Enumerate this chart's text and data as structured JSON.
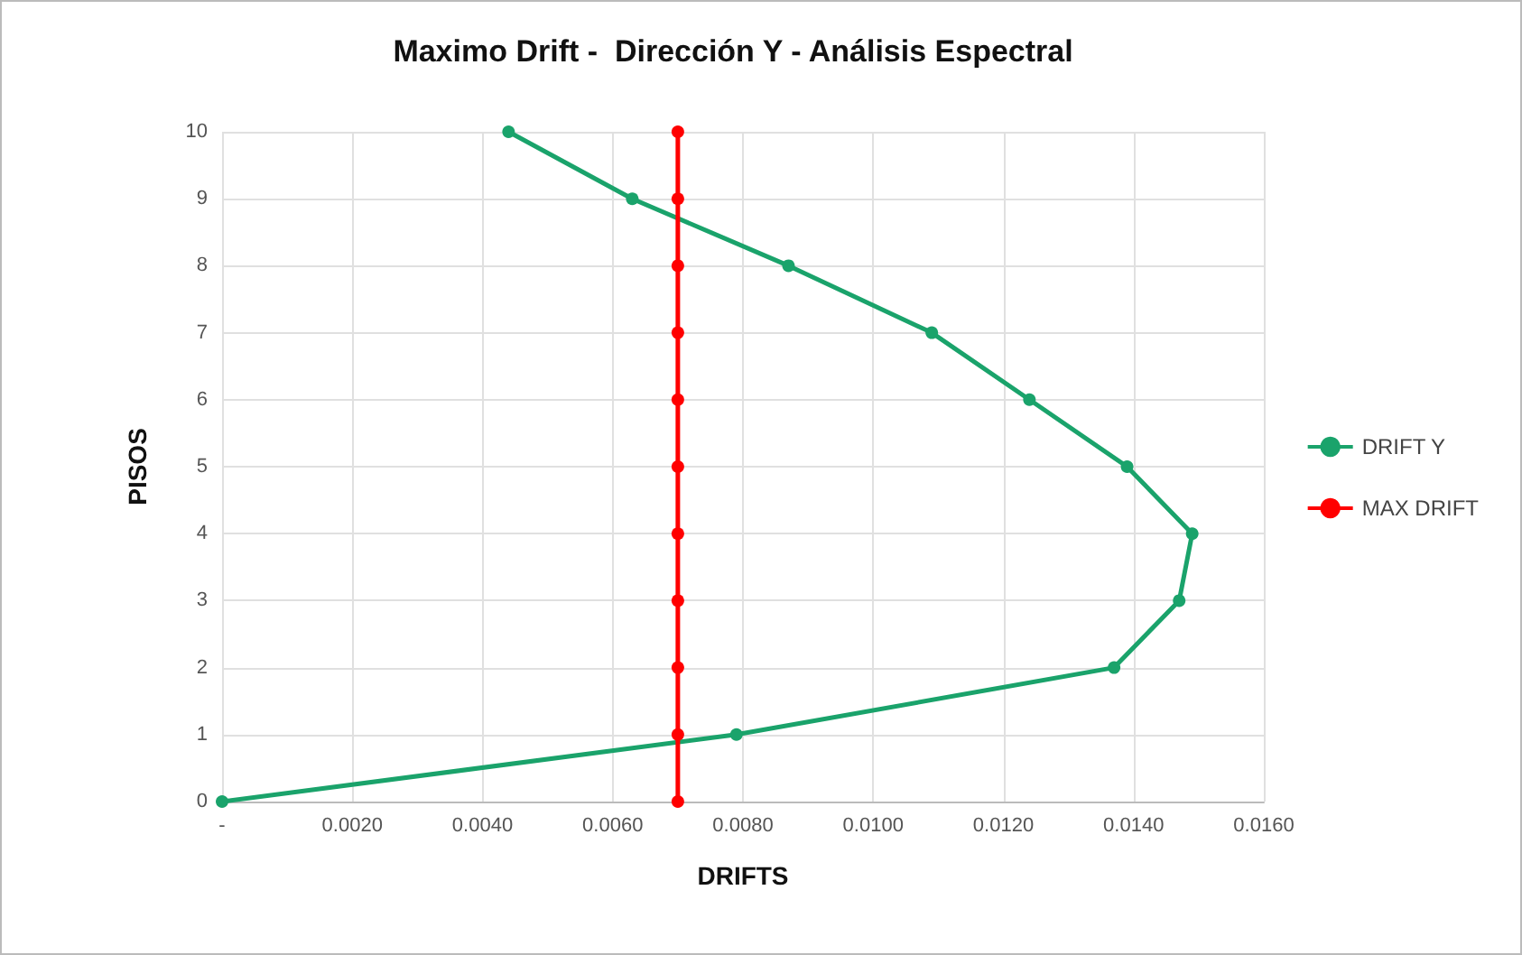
{
  "chart_data": {
    "type": "line",
    "title": "Maximo Drift -  Dirección Y - Análisis Espectral",
    "xlabel": "DRIFTS",
    "ylabel": "PISOS",
    "series": [
      {
        "name": "DRIFT Y",
        "color": "#1aa36b",
        "x": [
          0,
          0.0079,
          0.0137,
          0.0147,
          0.0149,
          0.0139,
          0.0124,
          0.0109,
          0.0087,
          0.0063,
          0.0044
        ],
        "values": [
          0,
          1,
          2,
          3,
          4,
          5,
          6,
          7,
          8,
          9,
          10
        ]
      },
      {
        "name": "MAX DRIFT",
        "color": "#ff0000",
        "x": [
          0.007,
          0.007,
          0.007,
          0.007,
          0.007,
          0.007,
          0.007,
          0.007,
          0.007,
          0.007,
          0.007
        ],
        "values": [
          0,
          1,
          2,
          3,
          4,
          5,
          6,
          7,
          8,
          9,
          10
        ]
      }
    ],
    "xlim": [
      0,
      0.016
    ],
    "xticks": [
      {
        "value": 0,
        "label": "-"
      },
      {
        "value": 0.002,
        "label": "0.0020"
      },
      {
        "value": 0.004,
        "label": "0.0040"
      },
      {
        "value": 0.006,
        "label": "0.0060"
      },
      {
        "value": 0.008,
        "label": "0.0080"
      },
      {
        "value": 0.01,
        "label": "0.0100"
      },
      {
        "value": 0.012,
        "label": "0.0120"
      },
      {
        "value": 0.014,
        "label": "0.0140"
      },
      {
        "value": 0.016,
        "label": "0.0160"
      }
    ],
    "ylim": [
      0,
      10
    ],
    "yticks": [
      0,
      1,
      2,
      3,
      4,
      5,
      6,
      7,
      8,
      9,
      10
    ],
    "grid": true,
    "legend": "right",
    "marker": "circle",
    "line_style": "solid"
  }
}
